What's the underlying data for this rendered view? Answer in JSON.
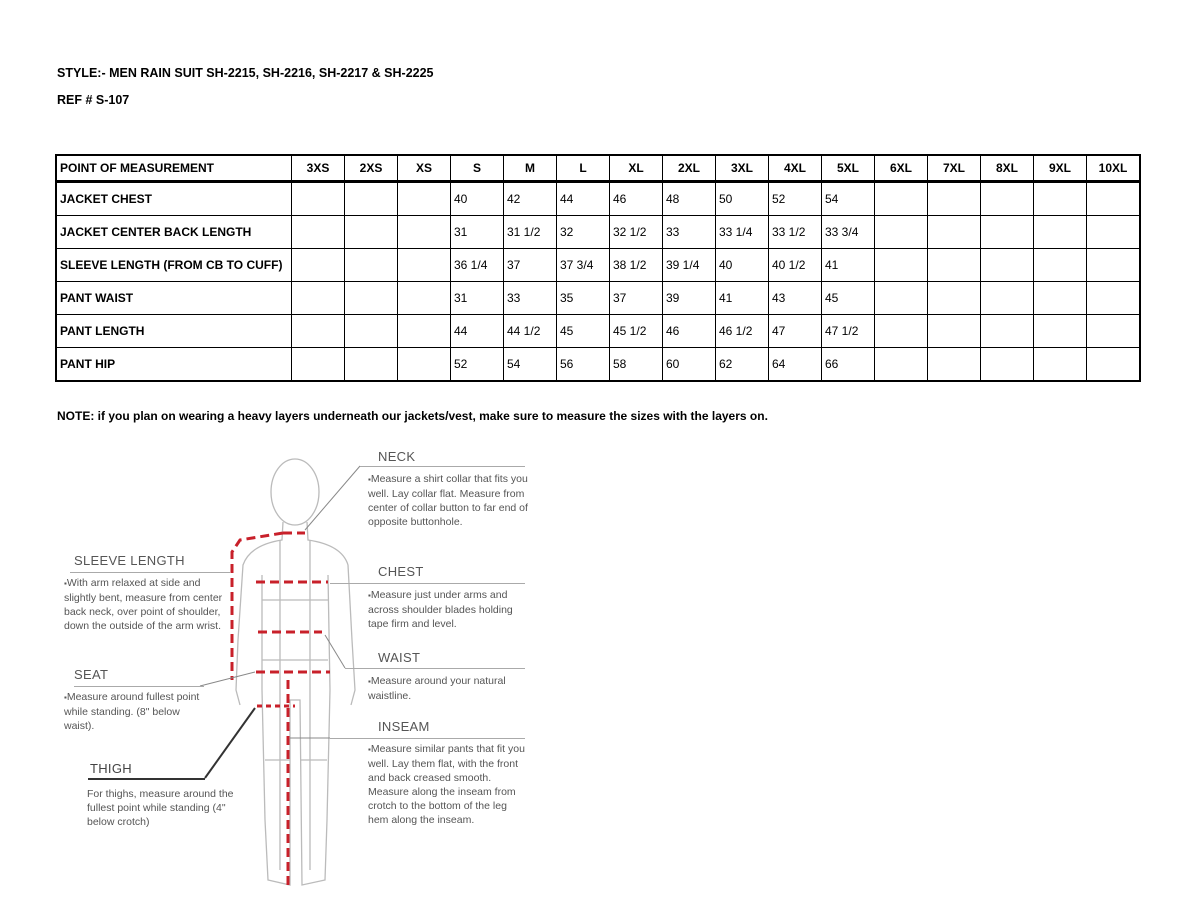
{
  "header": {
    "style": "STYLE:- MEN RAIN SUIT     SH-2215, SH-2216, SH-2217 & SH-2225",
    "ref": "REF # S-107"
  },
  "table": {
    "columns": [
      "POINT OF MEASUREMENT",
      "3XS",
      "2XS",
      "XS",
      "S",
      "M",
      "L",
      "XL",
      "2XL",
      "3XL",
      "4XL",
      "5XL",
      "6XL",
      "7XL",
      "8XL",
      "9XL",
      "10XL"
    ],
    "rows": [
      [
        "JACKET CHEST",
        "",
        "",
        "",
        "40",
        "42",
        "44",
        "46",
        "48",
        "50",
        "52",
        "54",
        "",
        "",
        "",
        "",
        ""
      ],
      [
        "JACKET CENTER BACK LENGTH",
        "",
        "",
        "",
        "31",
        "31 1/2",
        "32",
        "32 1/2",
        "33",
        "33 1/4",
        "33 1/2",
        "33 3/4",
        "",
        "",
        "",
        "",
        ""
      ],
      [
        "SLEEVE LENGTH (FROM CB TO CUFF)",
        "",
        "",
        "",
        "36 1/4",
        "37",
        "37 3/4",
        "38 1/2",
        "39 1/4",
        "40",
        "40 1/2",
        "41",
        "",
        "",
        "",
        "",
        ""
      ],
      [
        "PANT WAIST",
        "",
        "",
        "",
        "31",
        "33",
        "35",
        "37",
        "39",
        "41",
        "43",
        "45",
        "",
        "",
        "",
        "",
        ""
      ],
      [
        "PANT LENGTH",
        "",
        "",
        "",
        "44",
        "44 1/2",
        "45",
        "45 1/2",
        "46",
        "46 1/2",
        "47",
        "47 1/2",
        "",
        "",
        "",
        "",
        ""
      ],
      [
        "PANT HIP",
        "",
        "",
        "",
        "52",
        "54",
        "56",
        "58",
        "60",
        "62",
        "64",
        "66",
        "",
        "",
        "",
        "",
        ""
      ]
    ]
  },
  "note": "NOTE: if you plan on wearing a heavy layers underneath our jackets/vest, make sure to measure the sizes with the layers on.",
  "guide": {
    "neck": {
      "label": "NECK",
      "text": "Measure a shirt collar that fits you well. Lay collar flat. Measure from center of collar button to far end of opposite buttonhole."
    },
    "chest": {
      "label": "CHEST",
      "text": "Measure just under arms and across shoulder blades holding tape firm and level."
    },
    "waist": {
      "label": "WAIST",
      "text": "Measure around your natural waistline."
    },
    "inseam": {
      "label": "INSEAM",
      "text": "Measure similar pants that fit you well. Lay them flat, with the front and back creased smooth. Measure along the inseam from crotch to the bottom of the leg hem along the inseam."
    },
    "sleeve": {
      "label": "SLEEVE LENGTH",
      "text": "With arm relaxed at side and slightly bent, measure from center back neck, over point of shoulder, down the outside of the arm wrist."
    },
    "seat": {
      "label": "SEAT",
      "text": "Measure around fullest point while standing. (8\" below waist)."
    },
    "thigh": {
      "label": "THIGH",
      "text": "For thighs, measure around the fullest point while standing (4\" below crotch)"
    }
  },
  "colors": {
    "measure_line": "#c8202a"
  }
}
